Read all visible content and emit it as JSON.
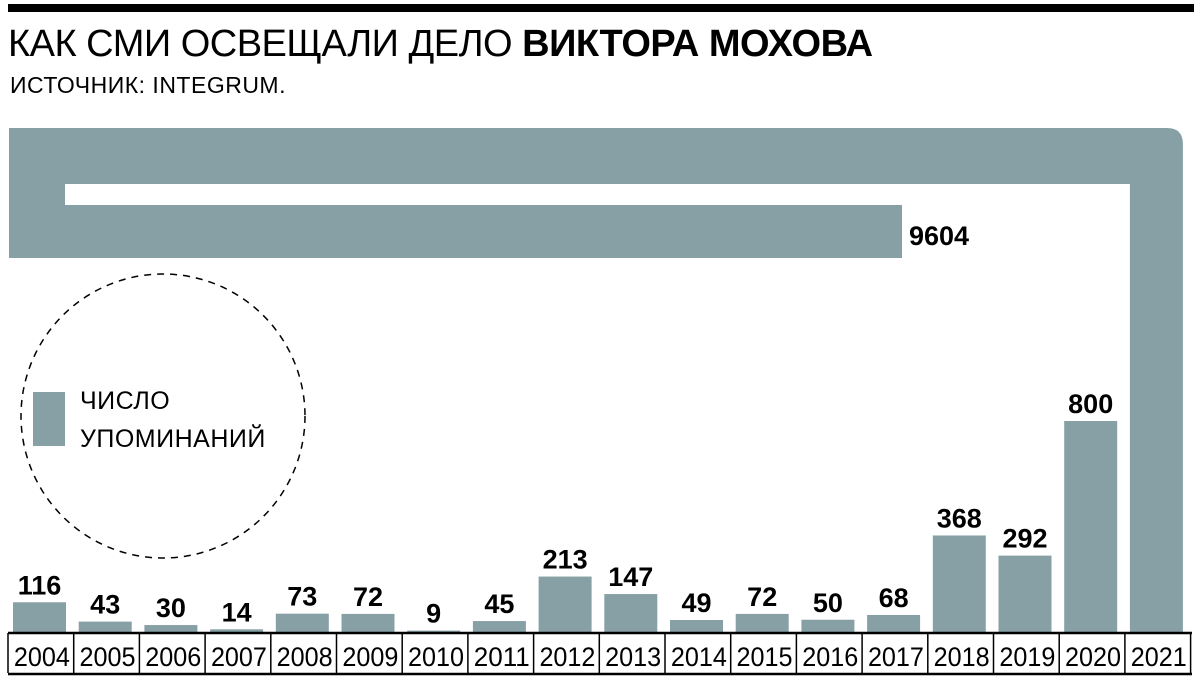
{
  "header": {
    "title_prefix": "КАК СМИ ОСВЕЩАЛИ ДЕЛО ",
    "title_bold": "ВИКТОРА МОХОВА",
    "source": "ИСТОЧНИК: INTEGRUM."
  },
  "legend": {
    "line1": "ЧИСЛО",
    "line2": "УПОМИНАНИЙ",
    "placement": "left"
  },
  "colors": {
    "bar": "#87a0a6",
    "axis": "#000000",
    "background": "#ffffff"
  },
  "chart_data": {
    "type": "bar",
    "categories": [
      "2004",
      "2005",
      "2006",
      "2007",
      "2008",
      "2009",
      "2010",
      "2011",
      "2012",
      "2013",
      "2014",
      "2015",
      "2016",
      "2017",
      "2018",
      "2019",
      "2020",
      "2021"
    ],
    "values": [
      116,
      43,
      30,
      14,
      73,
      72,
      9,
      45,
      213,
      147,
      49,
      72,
      50,
      68,
      368,
      292,
      800,
      9604
    ],
    "labels": [
      "116",
      "43",
      "30",
      "14",
      "73",
      "72",
      "9",
      "45",
      "213",
      "147",
      "49",
      "72",
      "50",
      "68",
      "368",
      "292",
      "800",
      "9604"
    ],
    "note": "bar for 2021 is drawn folded (wrapped) because it exceeds the plot height",
    "grid": false
  }
}
